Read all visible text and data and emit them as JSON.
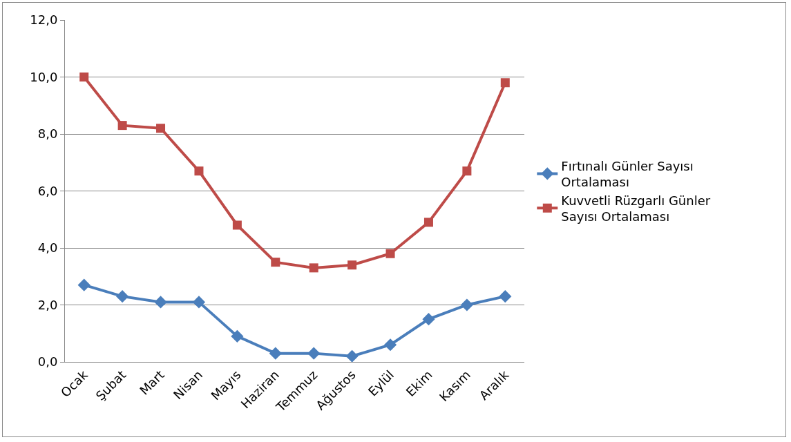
{
  "chart_data": {
    "type": "line",
    "categories": [
      "Ocak",
      "Şubat",
      "Mart",
      "Nisan",
      "Mayıs",
      "Haziran",
      "Temmuz",
      "Ağustos",
      "Eylül",
      "Ekim",
      "Kasım",
      "Aralık"
    ],
    "series": [
      {
        "name": "Fırtınalı Günler Sayısı Ortalaması",
        "color": "#4a7ebb",
        "marker": "diamond",
        "values": [
          2.7,
          2.3,
          2.1,
          2.1,
          0.9,
          0.3,
          0.3,
          0.2,
          0.6,
          1.5,
          2.0,
          2.3
        ]
      },
      {
        "name": "Kuvvetli Rüzgarlı Günler Sayısı Ortalaması",
        "color": "#be4b48",
        "marker": "square",
        "values": [
          10.0,
          8.3,
          8.2,
          6.7,
          4.8,
          3.5,
          3.3,
          3.4,
          3.8,
          4.9,
          6.7,
          9.8
        ]
      }
    ],
    "ylim": [
      0,
      12
    ],
    "yticks": [
      {
        "value": 0,
        "label": "0,0"
      },
      {
        "value": 2,
        "label": "2,0"
      },
      {
        "value": 4,
        "label": "4,0"
      },
      {
        "value": 6,
        "label": "6,0"
      },
      {
        "value": 8,
        "label": "8,0"
      },
      {
        "value": 10,
        "label": "10,0"
      },
      {
        "value": 12,
        "label": "12,0"
      }
    ],
    "grid": "y",
    "legend": "right",
    "line_style": "solid"
  }
}
